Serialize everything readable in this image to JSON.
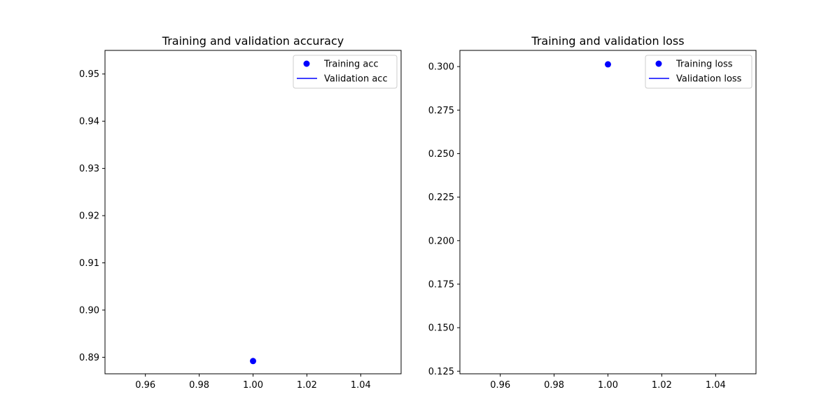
{
  "chart_data": [
    {
      "type": "scatter",
      "title": "Training and validation accuracy",
      "xlabel": "",
      "ylabel": "",
      "xlim": [
        0.945,
        1.055
      ],
      "ylim": [
        0.8865,
        0.955
      ],
      "x_ticks": [
        0.96,
        0.98,
        1.0,
        1.02,
        1.04
      ],
      "x_tick_labels": [
        "0.96",
        "0.98",
        "1.00",
        "1.02",
        "1.04"
      ],
      "y_ticks": [
        0.89,
        0.9,
        0.91,
        0.92,
        0.93,
        0.94,
        0.95
      ],
      "y_tick_labels": [
        "0.89",
        "0.90",
        "0.91",
        "0.92",
        "0.93",
        "0.94",
        "0.95"
      ],
      "grid": false,
      "legend_position": "top-right",
      "series": [
        {
          "name": "Training acc",
          "style": "points",
          "color": "#0000ff",
          "x": [
            1.0
          ],
          "y": [
            0.8892
          ]
        },
        {
          "name": "Validation acc",
          "style": "line",
          "color": "#0000ff",
          "x": [],
          "y": []
        }
      ]
    },
    {
      "type": "scatter",
      "title": "Training and validation loss",
      "xlabel": "",
      "ylabel": "",
      "xlim": [
        0.945,
        1.055
      ],
      "ylim": [
        0.1235,
        0.3093
      ],
      "x_ticks": [
        0.96,
        0.98,
        1.0,
        1.02,
        1.04
      ],
      "x_tick_labels": [
        "0.96",
        "0.98",
        "1.00",
        "1.02",
        "1.04"
      ],
      "y_ticks": [
        0.125,
        0.15,
        0.175,
        0.2,
        0.225,
        0.25,
        0.275,
        0.3
      ],
      "y_tick_labels": [
        "0.125",
        "0.150",
        "0.175",
        "0.200",
        "0.225",
        "0.250",
        "0.275",
        "0.300"
      ],
      "grid": false,
      "legend_position": "top-right",
      "series": [
        {
          "name": "Training loss",
          "style": "points",
          "color": "#0000ff",
          "x": [
            1.0
          ],
          "y": [
            0.3013
          ]
        },
        {
          "name": "Validation loss",
          "style": "line",
          "color": "#0000ff",
          "x": [],
          "y": []
        }
      ]
    }
  ]
}
